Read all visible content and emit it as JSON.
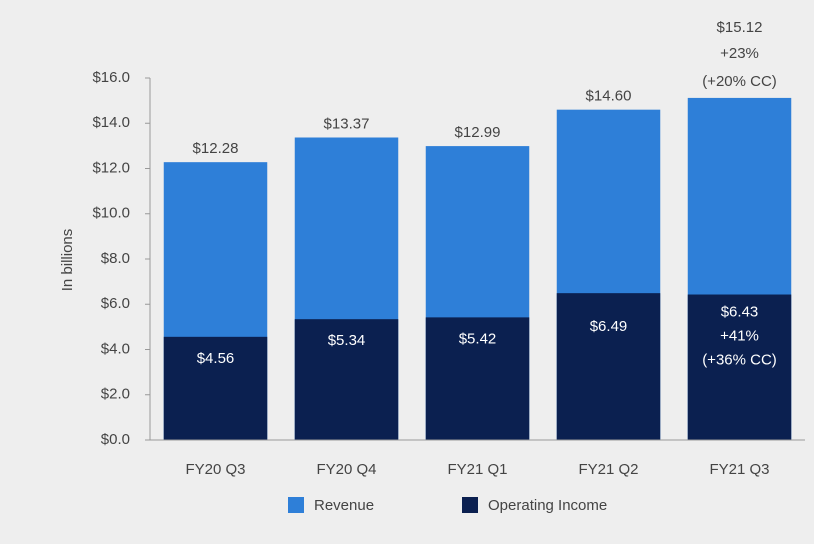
{
  "chart_data": {
    "type": "bar",
    "y_label": "In billions",
    "categories": [
      "FY20 Q3",
      "FY20 Q4",
      "FY21 Q1",
      "FY21 Q2",
      "FY21 Q3"
    ],
    "series": [
      {
        "name": "Revenue",
        "color": "#2e7fd8",
        "values": [
          12.28,
          13.37,
          12.99,
          14.6,
          15.12
        ],
        "value_labels": [
          "$12.28",
          "$13.37",
          "$12.99",
          "$14.60",
          "$15.12"
        ]
      },
      {
        "name": "Operating Income",
        "color": "#0b2050",
        "values": [
          4.56,
          5.34,
          5.42,
          6.49,
          6.43
        ],
        "value_labels": [
          "$4.56",
          "$5.34",
          "$5.42",
          "$6.49",
          "$6.43"
        ]
      }
    ],
    "annotations": [
      "+23%",
      "(+20% CC)",
      "+41%",
      "(+36% CC)"
    ],
    "ylim": [
      0,
      16
    ],
    "yticks": [
      {
        "value": 0,
        "label": "$0.0"
      },
      {
        "value": 2,
        "label": "$2.0"
      },
      {
        "value": 4,
        "label": "$4.0"
      },
      {
        "value": 6,
        "label": "$6.0"
      },
      {
        "value": 8,
        "label": "$8.0"
      },
      {
        "value": 10,
        "label": "$10.0"
      },
      {
        "value": 12,
        "label": "$12.0"
      },
      {
        "value": 14,
        "label": "$14.0"
      },
      {
        "value": 16,
        "label": "$16.0"
      }
    ],
    "legend": "bottom"
  }
}
